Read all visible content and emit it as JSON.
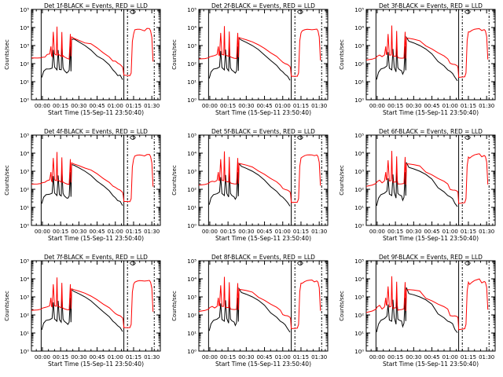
{
  "colors": {
    "events": "#000000",
    "lld": "#ff0000",
    "frame": "#000000",
    "background": "#ffffff"
  },
  "xticks": [
    "00:00",
    "00:15",
    "00:30",
    "00:45",
    "01:00",
    "01:15",
    "01:30"
  ],
  "xtick_minutes": [
    0,
    15,
    30,
    45,
    60,
    75,
    90
  ],
  "xlabel": "Start Time (15-Sep-11 23:50:40)",
  "ylabel": "Counts/sec",
  "yticks": [
    "10⁰",
    "10¹",
    "10²",
    "10³",
    "10⁴",
    "10⁵"
  ],
  "panels": [
    {
      "title": "Det 1f-BLACK = Events, RED = LLD"
    },
    {
      "title": "Det 2f-BLACK = Events, RED = LLD"
    },
    {
      "title": "Det 3f-BLACK = Events, RED = LLD"
    },
    {
      "title": "Det 4f-BLACK = Events, RED = LLD"
    },
    {
      "title": "Det 5f-BLACK = Events, RED = LLD"
    },
    {
      "title": "Det 6f-BLACK = Events, RED = LLD"
    },
    {
      "title": "Det 7f-BLACK = Events, RED = LLD"
    },
    {
      "title": "Det 8f-BLACK = Events, RED = LLD"
    },
    {
      "title": "Det 9f-BLACK = Events, RED = LLD"
    }
  ],
  "chart_data": {
    "type": "line",
    "layout": "3x3 grid",
    "xlabel": "Start Time (15-Sep-11 23:50:40)",
    "ylabel": "Counts/sec",
    "y_scale": "log",
    "ylim": [
      1,
      100000
    ],
    "xlim_minutes": [
      -9,
      97
    ],
    "grid": false,
    "legend": "in titles",
    "vertical_markers_minutes": {
      "solid": [
        -1,
        67
      ],
      "dash_dot": [
        70,
        92
      ]
    },
    "series": [
      {
        "name": "Events",
        "color": "#000000",
        "x": [
          -0.5,
          1,
          3,
          6,
          8,
          9,
          10,
          12,
          13,
          14,
          15.5,
          16,
          17,
          18,
          20,
          21,
          22,
          23,
          23.5,
          24,
          26,
          30,
          35,
          40,
          45,
          50,
          55,
          58,
          60,
          62,
          64,
          66
        ],
        "y": [
          15,
          35,
          50,
          55,
          65,
          500,
          60,
          45,
          600,
          55,
          40,
          1200,
          60,
          45,
          35,
          30,
          40,
          900,
          40,
          2500,
          2000,
          1500,
          1000,
          600,
          300,
          150,
          80,
          45,
          35,
          25,
          20,
          12
        ]
      },
      {
        "name": "LLD",
        "color": "#ff0000",
        "x": [
          -9,
          -4,
          -1,
          0,
          2,
          4,
          6,
          7,
          7.5,
          8,
          9,
          10,
          11.5,
          12,
          12.5,
          13,
          14,
          15.5,
          16,
          16.5,
          17,
          18,
          20,
          22,
          23,
          23.5,
          24,
          26,
          30,
          35,
          40,
          45,
          50,
          55,
          58,
          60,
          62,
          64,
          66,
          66.5,
          67,
          72,
          73,
          74,
          75,
          76,
          78,
          80,
          82,
          84,
          86,
          88,
          89,
          90,
          91
        ],
        "y": [
          180,
          190,
          210,
          240,
          260,
          280,
          320,
          900,
          300,
          280,
          5000,
          320,
          300,
          12000,
          320,
          300,
          280,
          250,
          6000,
          260,
          240,
          220,
          200,
          190,
          5000,
          220,
          2800,
          2500,
          2100,
          1600,
          1100,
          700,
          400,
          250,
          160,
          120,
          100,
          90,
          70,
          50,
          20,
          20,
          30,
          1800,
          5000,
          6500,
          7500,
          8000,
          7800,
          7500,
          7800,
          8200,
          6500,
          3000,
          150
        ]
      }
    ]
  }
}
